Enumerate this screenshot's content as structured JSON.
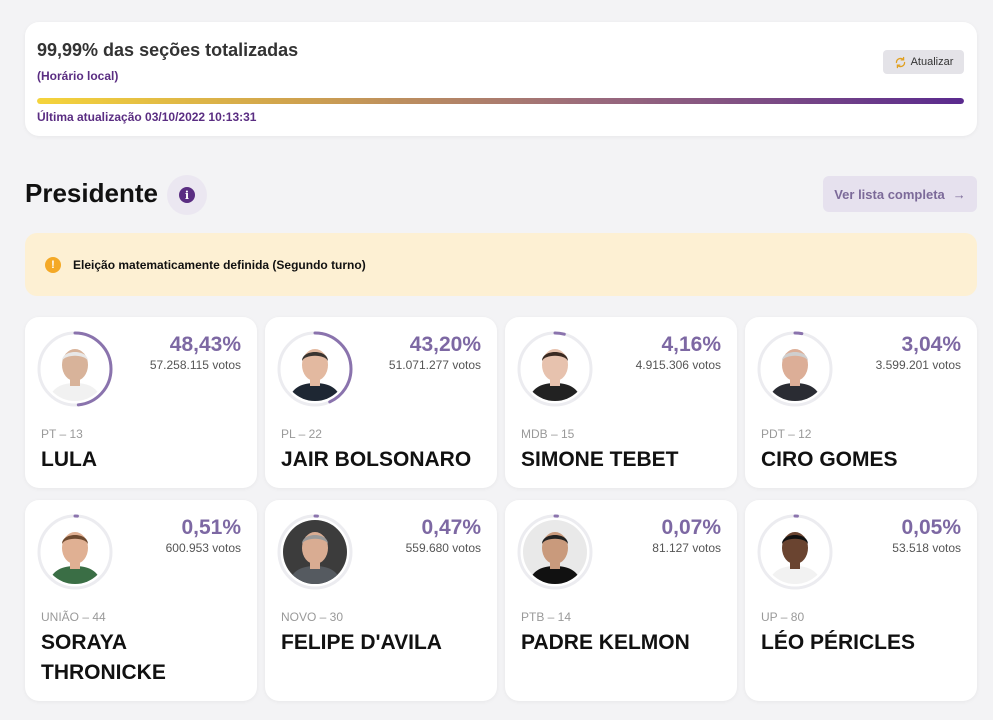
{
  "status": {
    "title": "99,99% das seções totalizadas",
    "subtitle": "(Horário local)",
    "refresh_label": "Atualizar",
    "progress_fraction": 0.9999,
    "updated": "Última atualização 03/10/2022 10:13:31"
  },
  "section": {
    "title": "Presidente",
    "info_glyph": "i",
    "list_button": "Ver lista completa",
    "list_arrow": "→"
  },
  "alert": {
    "icon_glyph": "!",
    "text": "Eleição matematicamente definida (Segundo turno)"
  },
  "colors": {
    "accent": "#5a2d82",
    "percent": "#7d68a3",
    "ring": "#8a73ad",
    "alert_bg": "#fdf0d3"
  },
  "candidates": [
    {
      "pct": "48,43%",
      "share": 0.4843,
      "votes": "57.258.115 votos",
      "party": "PT – 13",
      "name": "LULA",
      "skin": "#d8b39a",
      "hair": "#e8e8e8",
      "suit": "#f1f1f1",
      "bg": "#ffffff"
    },
    {
      "pct": "43,20%",
      "share": 0.432,
      "votes": "51.071.277 votos",
      "party": "PL – 22",
      "name": "JAIR BOLSONARO",
      "skin": "#e3b9a0",
      "hair": "#3a3430",
      "suit": "#1e2733",
      "bg": "#ffffff"
    },
    {
      "pct": "4,16%",
      "share": 0.0416,
      "votes": "4.915.306 votos",
      "party": "MDB – 15",
      "name": "SIMONE TEBET",
      "skin": "#e7c2ae",
      "hair": "#3a2a22",
      "suit": "#222222",
      "bg": "#ffffff"
    },
    {
      "pct": "3,04%",
      "share": 0.0304,
      "votes": "3.599.201 votos",
      "party": "PDT – 12",
      "name": "CIRO GOMES",
      "skin": "#dcae97",
      "hair": "#cfcfcf",
      "suit": "#2a2c33",
      "bg": "#ffffff"
    },
    {
      "pct": "0,51%",
      "share": 0.0051,
      "votes": "600.953 votos",
      "party": "UNIÃO – 44",
      "name": "SORAYA THRONICKE",
      "skin": "#e0b093",
      "hair": "#6e4a30",
      "suit": "#3a6e45",
      "bg": "#ffffff"
    },
    {
      "pct": "0,47%",
      "share": 0.0047,
      "votes": "559.680 votos",
      "party": "NOVO – 30",
      "name": "FELIPE D'AVILA",
      "skin": "#d9ac92",
      "hair": "#9a9a9a",
      "suit": "#555a60",
      "bg": "#3c3c3c"
    },
    {
      "pct": "0,07%",
      "share": 0.0007,
      "votes": "81.127 votos",
      "party": "PTB – 14",
      "name": "PADRE KELMON",
      "skin": "#c99a7c",
      "hair": "#222222",
      "suit": "#111111",
      "bg": "#e9e9e9"
    },
    {
      "pct": "0,05%",
      "share": 0.0005,
      "votes": "53.518 votos",
      "party": "UP – 80",
      "name": "LÉO PÉRICLES",
      "skin": "#6a4430",
      "hair": "#111111",
      "suit": "#f2f2f2",
      "bg": "#ffffff"
    }
  ]
}
